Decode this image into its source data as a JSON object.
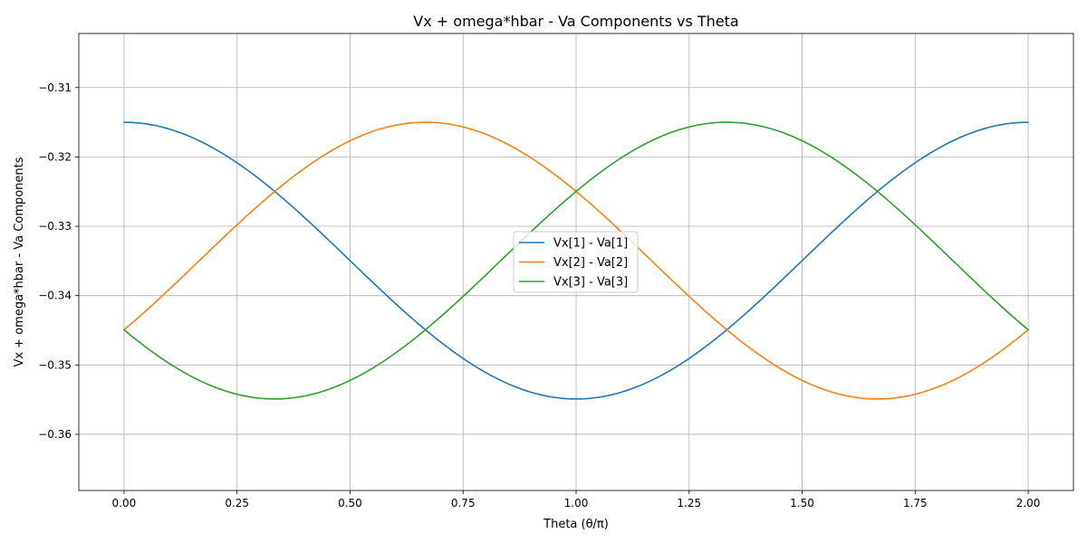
{
  "chart_data": {
    "type": "line",
    "title": "Vx + omega*hbar - Va Components vs Theta",
    "xlabel": "Theta (θ/π)",
    "ylabel": "Vx + omega*hbar - Va Components",
    "xlim": [
      -0.1,
      2.1
    ],
    "ylim": [
      -0.3681,
      -0.3022
    ],
    "xticks": [
      0.0,
      0.25,
      0.5,
      0.75,
      1.0,
      1.25,
      1.5,
      1.75,
      2.0
    ],
    "xtick_labels": [
      "0.00",
      "0.25",
      "0.50",
      "0.75",
      "1.00",
      "1.25",
      "1.50",
      "1.75",
      "2.00"
    ],
    "yticks": [
      -0.36,
      -0.35,
      -0.34,
      -0.33,
      -0.32,
      -0.31
    ],
    "ytick_labels": [
      "−0.36",
      "−0.35",
      "−0.34",
      "−0.33",
      "−0.32",
      "−0.31"
    ],
    "grid": true,
    "legend_position": "center",
    "series": [
      {
        "name": "Vx[1] - Va[1]",
        "color": "#1f77b4",
        "phase_offset": 0.0
      },
      {
        "name": "Vx[2] - Va[2]",
        "color": "#ff7f0e",
        "phase_offset": 0.6667
      },
      {
        "name": "Vx[3] - Va[3]",
        "color": "#2ca02c",
        "phase_offset": 1.3333
      }
    ],
    "curve_model": "y = -0.33495 + 0.01995*cos(pi*(x - phase_offset))",
    "x_range": [
      0.0,
      2.0
    ]
  }
}
